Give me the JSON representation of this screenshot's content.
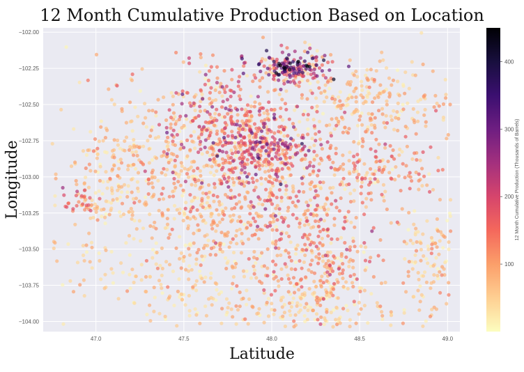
{
  "chart_data": {
    "type": "scatter",
    "title": "12 Month Cumulative Production Based on Location",
    "xlabel": "Latitude",
    "ylabel": "Longitude",
    "xlim": [
      46.7,
      49.07
    ],
    "ylim": [
      -104.07,
      -101.97
    ],
    "xticks": [
      47.0,
      47.5,
      48.0,
      48.5,
      49.0
    ],
    "xtick_labels": [
      "47.0",
      "47.5",
      "48.0",
      "48.5",
      "49.0"
    ],
    "yticks": [
      -102.0,
      -102.25,
      -102.5,
      -102.75,
      -103.0,
      -103.25,
      -103.5,
      -103.75,
      -104.0
    ],
    "ytick_labels": [
      "−102.00",
      "−102.25",
      "−102.50",
      "−102.75",
      "−103.00",
      "−103.25",
      "−103.50",
      "−103.75",
      "−104.00"
    ],
    "grid": true,
    "colorbar": {
      "label": "12 Month Cumulative Production (Thousands of Barrels)",
      "range": [
        0,
        450
      ],
      "ticks": [
        100,
        200,
        300,
        400
      ],
      "tick_labels": [
        "100",
        "200",
        "300",
        "400"
      ],
      "colormap": "magma_r",
      "colors": [
        "#fcfdbf",
        "#fecf92",
        "#fb9f6a",
        "#f4685c",
        "#d6456c",
        "#a3307e",
        "#6e1e81",
        "#3b0f70",
        "#180f3e",
        "#000004"
      ]
    },
    "plot_background": "#eaeaf2",
    "grid_color": "#ffffff",
    "point_alpha": 0.7,
    "clusters": [
      {
        "cx": 48.12,
        "cy": -102.25,
        "sx": 0.12,
        "sy": 0.06,
        "n": 160,
        "v": 190,
        "vs": 110
      },
      {
        "cx": 48.1,
        "cy": -102.23,
        "sx": 0.06,
        "sy": 0.03,
        "n": 40,
        "v": 360,
        "vs": 60
      },
      {
        "cx": 47.72,
        "cy": -102.65,
        "sx": 0.2,
        "sy": 0.2,
        "n": 320,
        "v": 140,
        "vs": 70
      },
      {
        "cx": 47.95,
        "cy": -102.8,
        "sx": 0.15,
        "sy": 0.12,
        "n": 200,
        "v": 175,
        "vs": 80
      },
      {
        "cx": 48.0,
        "cy": -103.1,
        "sx": 0.25,
        "sy": 0.3,
        "n": 420,
        "v": 115,
        "vs": 60
      },
      {
        "cx": 48.3,
        "cy": -103.6,
        "sx": 0.18,
        "sy": 0.22,
        "n": 260,
        "v": 100,
        "vs": 55
      },
      {
        "cx": 48.55,
        "cy": -102.5,
        "sx": 0.25,
        "sy": 0.15,
        "n": 240,
        "v": 70,
        "vs": 40
      },
      {
        "cx": 48.6,
        "cy": -102.95,
        "sx": 0.18,
        "sy": 0.12,
        "n": 140,
        "v": 105,
        "vs": 50
      },
      {
        "cx": 47.35,
        "cy": -102.9,
        "sx": 0.22,
        "sy": 0.25,
        "n": 260,
        "v": 65,
        "vs": 40
      },
      {
        "cx": 47.05,
        "cy": -103.1,
        "sx": 0.12,
        "sy": 0.2,
        "n": 110,
        "v": 55,
        "vs": 35
      },
      {
        "cx": 46.92,
        "cy": -103.2,
        "sx": 0.04,
        "sy": 0.05,
        "n": 25,
        "v": 150,
        "vs": 50
      },
      {
        "cx": 48.9,
        "cy": -103.55,
        "sx": 0.1,
        "sy": 0.2,
        "n": 120,
        "v": 60,
        "vs": 35
      },
      {
        "cx": 47.4,
        "cy": -103.7,
        "sx": 0.3,
        "sy": 0.18,
        "n": 140,
        "v": 40,
        "vs": 30
      },
      {
        "cx": 48.2,
        "cy": -103.9,
        "sx": 0.35,
        "sy": 0.1,
        "n": 160,
        "v": 55,
        "vs": 35
      },
      {
        "cx": 47.6,
        "cy": -103.3,
        "sx": 0.15,
        "sy": 0.25,
        "n": 160,
        "v": 75,
        "vs": 40
      }
    ]
  }
}
